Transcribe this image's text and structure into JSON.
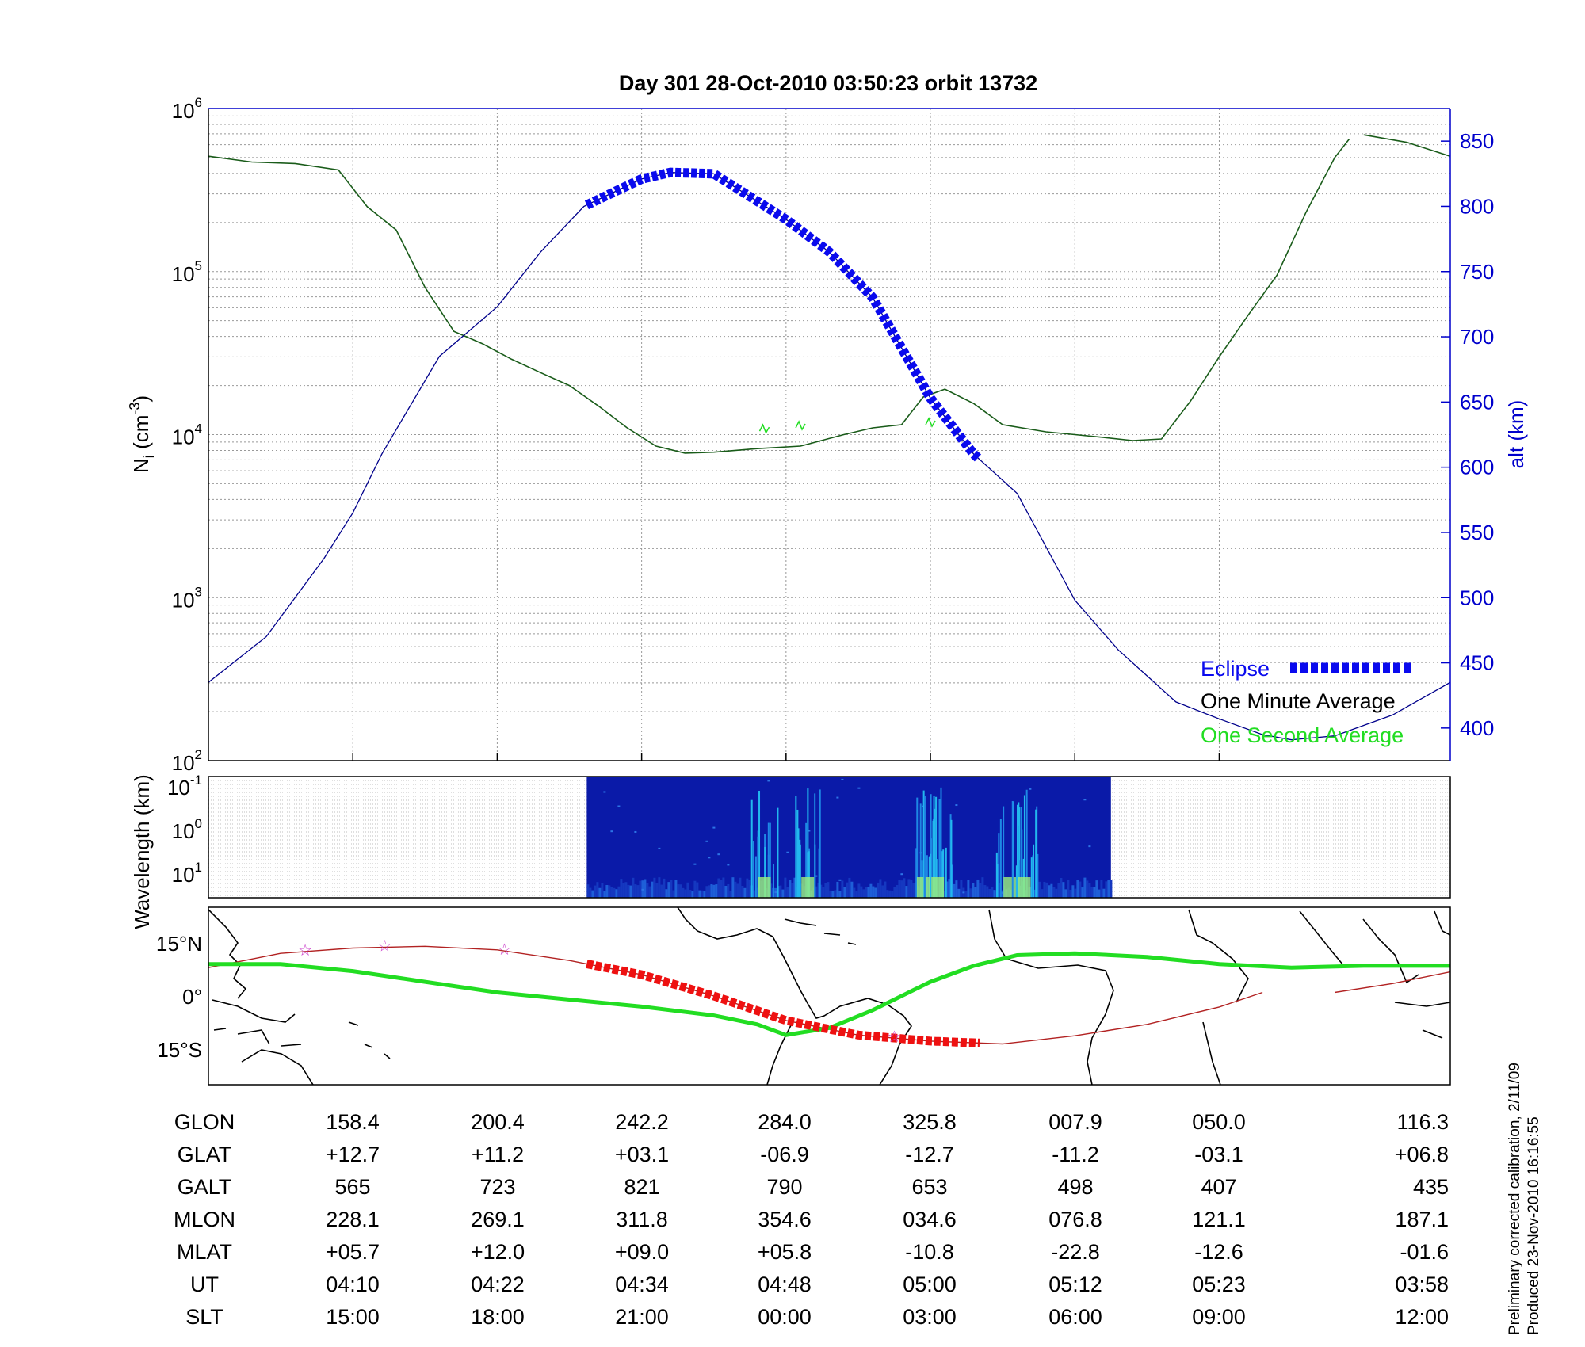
{
  "chart_data": [
    {
      "type": "line",
      "title": "Day 301   28-Oct-2010 03:50:23   orbit 13732",
      "ylabel_left": "N",
      "ylabel_left_sub": "i",
      "ylabel_left_unit": "(cm",
      "ylabel_left_exp": "-3",
      "ylabel_left_close": ")",
      "ylabel_right": "alt (km)",
      "y_scale_left": "log",
      "ylim_left": [
        100,
        1000000
      ],
      "yticks_left": [
        {
          "base": "10",
          "exp": "2",
          "value": 100
        },
        {
          "base": "10",
          "exp": "3",
          "value": 1000
        },
        {
          "base": "10",
          "exp": "4",
          "value": 10000
        },
        {
          "base": "10",
          "exp": "5",
          "value": 100000
        },
        {
          "base": "10",
          "exp": "6",
          "value": 1000000
        }
      ],
      "ylim_right": [
        375,
        875
      ],
      "yticks_right": [
        "400",
        "450",
        "500",
        "550",
        "600",
        "650",
        "700",
        "750",
        "800",
        "850"
      ],
      "xlim_index": [
        0,
        8.6
      ],
      "grid": true,
      "legend_position": "bottom-right",
      "legend": [
        {
          "label": "Eclipse",
          "color": "#0a0aee"
        },
        {
          "label": "One Minute Average",
          "color": "#000000"
        },
        {
          "label": "One Second Average",
          "color": "#22dd22"
        }
      ],
      "series": [
        {
          "name": "One Minute Average",
          "axis": "left",
          "color": "#1a5c1a",
          "points": [
            [
              0,
              510000
            ],
            [
              0.3,
              470000
            ],
            [
              0.6,
              460000
            ],
            [
              0.9,
              420000
            ],
            [
              1.1,
              250000
            ],
            [
              1.3,
              180000
            ],
            [
              1.5,
              80000
            ],
            [
              1.7,
              43000
            ],
            [
              1.9,
              36000
            ],
            [
              2.1,
              29000
            ],
            [
              2.3,
              24000
            ],
            [
              2.5,
              20000
            ],
            [
              2.7,
              15000
            ],
            [
              2.9,
              11000
            ],
            [
              3.1,
              8500
            ],
            [
              3.3,
              7700
            ],
            [
              3.5,
              7800
            ],
            [
              3.8,
              8200
            ],
            [
              4.1,
              8500
            ],
            [
              4.4,
              10000
            ],
            [
              4.6,
              11000
            ],
            [
              4.8,
              11500
            ],
            [
              4.95,
              17000
            ],
            [
              5.1,
              19000
            ],
            [
              5.3,
              15500
            ],
            [
              5.5,
              11500
            ],
            [
              5.8,
              10400
            ],
            [
              6.0,
              10000
            ],
            [
              6.2,
              9600
            ],
            [
              6.4,
              9200
            ],
            [
              6.6,
              9400
            ],
            [
              6.8,
              16000
            ],
            [
              7.0,
              30000
            ],
            [
              7.2,
              54000
            ],
            [
              7.4,
              95000
            ],
            [
              7.6,
              230000
            ],
            [
              7.8,
              500000
            ],
            [
              7.9,
              650000
            ]
          ]
        },
        {
          "name": "One Minute Average (after gap)",
          "axis": "left",
          "color": "#1a5c1a",
          "points": [
            [
              8.0,
              690000
            ],
            [
              8.3,
              620000
            ],
            [
              8.6,
              510000
            ]
          ]
        },
        {
          "name": "alt (km)",
          "axis": "right",
          "color": "#00008b",
          "points": [
            [
              0,
              435
            ],
            [
              0.4,
              470
            ],
            [
              0.8,
              530
            ],
            [
              1.0,
              565
            ],
            [
              1.2,
              610
            ],
            [
              1.6,
              685
            ],
            [
              2.0,
              723
            ],
            [
              2.3,
              765
            ],
            [
              2.6,
              800
            ],
            [
              3.0,
              821
            ],
            [
              3.2,
              826
            ],
            [
              3.5,
              825
            ],
            [
              4.0,
              790
            ],
            [
              4.3,
              765
            ],
            [
              4.6,
              730
            ],
            [
              5.0,
              653
            ],
            [
              5.3,
              610
            ],
            [
              5.6,
              580
            ],
            [
              6.0,
              498
            ],
            [
              6.3,
              460
            ],
            [
              6.7,
              420
            ],
            [
              7.0,
              407
            ],
            [
              7.3,
              395
            ],
            [
              7.5,
              391
            ],
            [
              7.8,
              394
            ],
            [
              8.2,
              410
            ],
            [
              8.6,
              435
            ]
          ]
        },
        {
          "name": "Eclipse",
          "axis": "right",
          "color": "#0a0aee",
          "x_range": [
            2.62,
            5.35
          ]
        }
      ]
    },
    {
      "type": "heatmap",
      "ylabel": "Wavelength (km)",
      "y_scale": "log",
      "yticks": [
        {
          "base": "10",
          "exp": "-1"
        },
        {
          "base": "10",
          "exp": "0"
        },
        {
          "base": "10",
          "exp": "1"
        }
      ],
      "data_x_range": [
        2.62,
        6.25
      ],
      "intensity_peaks_x": [
        3.85,
        4.15,
        4.95,
        5.05,
        5.55,
        5.65
      ]
    },
    {
      "type": "line",
      "name": "ground track",
      "ylabel": "latitude",
      "yticks": [
        "15°N",
        "0°",
        "15°S"
      ],
      "ylim": [
        -25,
        25
      ],
      "series": [
        {
          "name": "geographic track",
          "color": "#b22222",
          "points": [
            [
              0,
              8
            ],
            [
              0.5,
              12
            ],
            [
              1.0,
              13.5
            ],
            [
              1.5,
              14
            ],
            [
              2.0,
              13
            ],
            [
              2.5,
              10
            ],
            [
              3.0,
              6
            ],
            [
              3.5,
              0
            ],
            [
              4.0,
              -6.9
            ],
            [
              4.5,
              -11
            ],
            [
              5.0,
              -12.7
            ],
            [
              5.5,
              -13.5
            ],
            [
              6.0,
              -11.2
            ],
            [
              6.5,
              -8
            ],
            [
              7.0,
              -3.1
            ],
            [
              7.3,
              1
            ]
          ]
        },
        {
          "name": "geographic track (after gap)",
          "color": "#b22222",
          "points": [
            [
              7.8,
              1
            ],
            [
              8.2,
              3.5
            ],
            [
              8.6,
              6.8
            ]
          ]
        },
        {
          "name": "magnetic equator",
          "color": "#22dd22",
          "points": [
            [
              0,
              9
            ],
            [
              0.5,
              9
            ],
            [
              1.0,
              7
            ],
            [
              1.5,
              4
            ],
            [
              2.0,
              1
            ],
            [
              2.5,
              -1
            ],
            [
              3.0,
              -3
            ],
            [
              3.5,
              -5.5
            ],
            [
              3.8,
              -8
            ],
            [
              4.0,
              -11
            ],
            [
              4.3,
              -9
            ],
            [
              4.6,
              -4
            ],
            [
              4.8,
              0
            ],
            [
              5.0,
              4
            ],
            [
              5.3,
              8.5
            ],
            [
              5.6,
              11.5
            ],
            [
              6.0,
              12
            ],
            [
              6.5,
              11
            ],
            [
              7.0,
              9
            ],
            [
              7.5,
              8
            ],
            [
              8.0,
              8.5
            ],
            [
              8.6,
              8.5
            ]
          ]
        },
        {
          "name": "Eclipse",
          "color": "#ee1111",
          "x_range": [
            2.62,
            5.35
          ]
        }
      ],
      "stars_x": [
        0.67,
        1.22,
        2.05,
        4.75
      ]
    }
  ],
  "table": {
    "rows": [
      {
        "label": "GLON",
        "values": [
          "158.4",
          "200.4",
          "242.2",
          "284.0",
          "325.8",
          "007.9",
          "050.0",
          "116.3"
        ]
      },
      {
        "label": "GLAT",
        "values": [
          "+12.7",
          "+11.2",
          "+03.1",
          "-06.9",
          "-12.7",
          "-11.2",
          "-03.1",
          "+06.8"
        ]
      },
      {
        "label": "GALT",
        "values": [
          "565",
          "723",
          "821",
          "790",
          "653",
          "498",
          "407",
          "435"
        ]
      },
      {
        "label": "MLON",
        "values": [
          "228.1",
          "269.1",
          "311.8",
          "354.6",
          "034.6",
          "076.8",
          "121.1",
          "187.1"
        ]
      },
      {
        "label": "MLAT",
        "values": [
          "+05.7",
          "+12.0",
          "+09.0",
          "+05.8",
          "-10.8",
          "-22.8",
          "-12.6",
          "-01.6"
        ]
      },
      {
        "label": "UT",
        "values": [
          "04:10",
          "04:22",
          "04:34",
          "04:48",
          "05:00",
          "05:12",
          "05:23",
          "03:58"
        ]
      },
      {
        "label": "SLT",
        "values": [
          "15:00",
          "18:00",
          "21:00",
          "00:00",
          "03:00",
          "06:00",
          "09:00",
          "12:00"
        ]
      }
    ]
  },
  "notes": [
    "Preliminary corrected calibration, 2/11/09",
    "Produced 23-Nov-2010 16:16:55"
  ],
  "colors": {
    "eclipse_top": "#0a0aee",
    "eclipse_map": "#ee1111",
    "one_minute": "#1a5c1a",
    "one_second": "#22dd22",
    "altitude": "#00008b",
    "magnetic_equator": "#22dd22",
    "star_marker": "#cc44cc"
  }
}
